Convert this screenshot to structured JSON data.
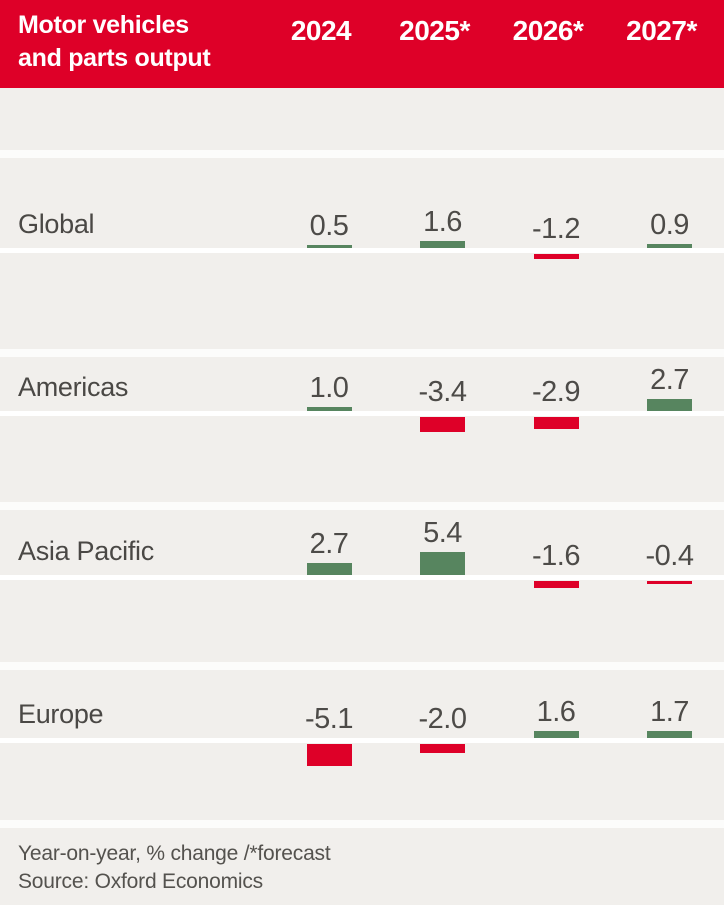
{
  "header": {
    "title_line1": "Motor vehicles",
    "title_line2": "and parts output"
  },
  "chart_data": {
    "type": "bar",
    "title": "Motor vehicles and parts output",
    "categories": [
      "2024",
      "2025*",
      "2026*",
      "2027*"
    ],
    "series": [
      {
        "name": "Global",
        "values": [
          0.5,
          1.6,
          -1.2,
          0.9
        ]
      },
      {
        "name": "Americas",
        "values": [
          1.0,
          -3.4,
          -2.9,
          2.7
        ]
      },
      {
        "name": "Asia Pacific",
        "values": [
          2.7,
          5.4,
          -1.6,
          -0.4
        ]
      },
      {
        "name": "Europe",
        "values": [
          -5.1,
          -2.0,
          1.6,
          1.7
        ]
      }
    ],
    "unit": "% change year-on-year",
    "value_labels": true,
    "legend": "none",
    "positive_color": "#57855f",
    "negative_color": "#de0028"
  },
  "footer": {
    "note": "Year-on-year, % change /*forecast",
    "source": "Source: Oxford Economics"
  },
  "colors": {
    "header_bg": "#de0028",
    "background": "#f1efec",
    "text": "#4d4b48",
    "positive": "#57855f",
    "negative": "#de0028"
  }
}
